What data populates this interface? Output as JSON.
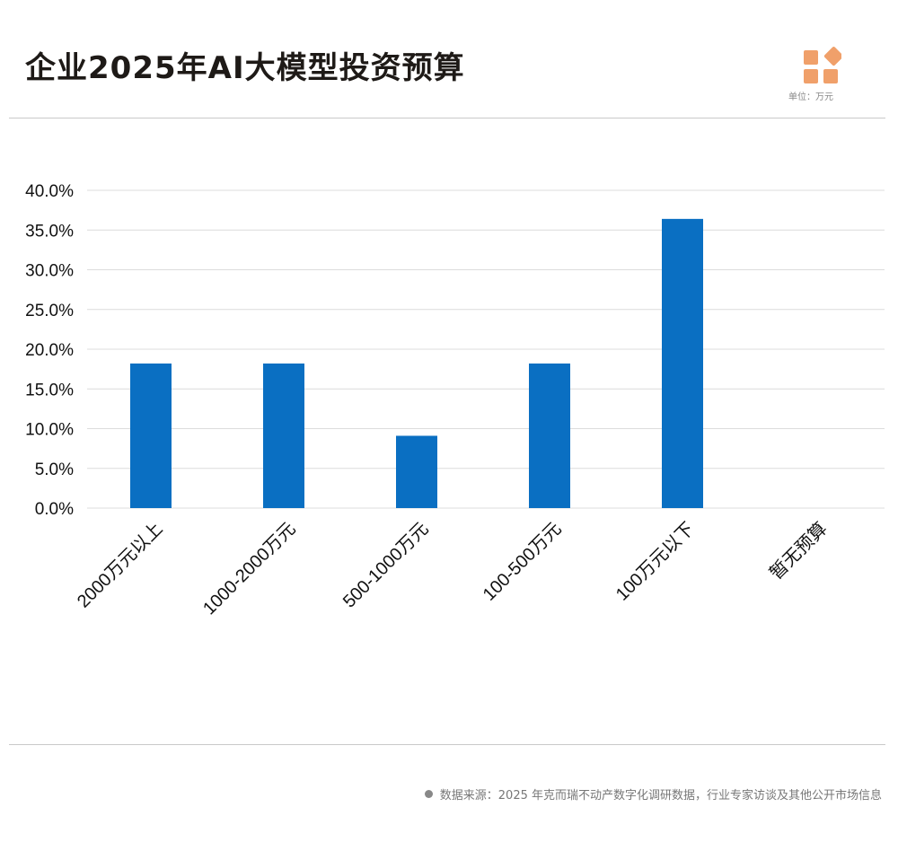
{
  "header": {
    "title": "企业2025年AI大模型投资预算",
    "unit": "单位：万元",
    "logo_color": "#f0a06a"
  },
  "footer": {
    "source": "数据来源：2025 年克而瑞不动产数字化调研数据，行业专家访谈及其他公开市场信息"
  },
  "chart_data": {
    "type": "bar",
    "categories": [
      "2000万元以上",
      "1000-2000万元",
      "500-1000万元",
      "100-500万元",
      "100万元以下",
      "暂无预算"
    ],
    "values": [
      18.2,
      18.2,
      9.1,
      18.2,
      36.4,
      0
    ],
    "ylim": [
      0,
      40
    ],
    "yticks": [
      "0.0%",
      "5.0%",
      "10.0%",
      "15.0%",
      "20.0%",
      "25.0%",
      "30.0%",
      "35.0%",
      "40.0%"
    ],
    "grid": true,
    "bar_color": "#0a6fc2",
    "unit": "%"
  }
}
